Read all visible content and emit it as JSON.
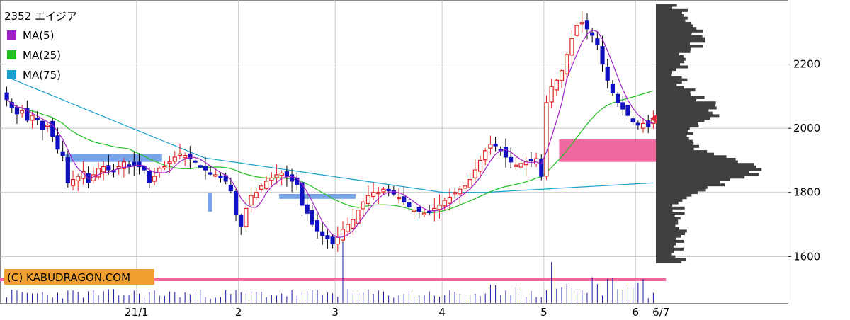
{
  "chart_data": {
    "type": "candlestick",
    "title": "2352 エイジア",
    "legend": [
      {
        "label": "MA(5)",
        "color": "#a020c8"
      },
      {
        "label": "MA(25)",
        "color": "#20c020"
      },
      {
        "label": "MA(75)",
        "color": "#1aa0d0"
      }
    ],
    "watermark": "(C) KABUDRAGON.COM",
    "y_ticks": [
      "2200",
      "2000",
      "1800",
      "1600"
    ],
    "y_tick_values": [
      2200,
      2000,
      1800,
      1600
    ],
    "ylim": [
      1455,
      2400
    ],
    "x_ticks": [
      {
        "label": "21/1",
        "index": 26
      },
      {
        "label": "2",
        "index": 46
      },
      {
        "label": "3",
        "index": 65
      },
      {
        "label": "4",
        "index": 86
      },
      {
        "label": "5",
        "index": 106
      },
      {
        "label": "6",
        "index": 124
      },
      {
        "label": "6/7",
        "index": 129
      }
    ],
    "colors": {
      "up": "#e02020",
      "down": "#1010c0",
      "grid": "#c8c8c8",
      "volume": "#1a1aa0",
      "profile": "#404040",
      "marker": "#e03040",
      "zone": "#f06aa0",
      "resist": "#6a9ae8"
    },
    "closes": [
      2090,
      2065,
      2045,
      2055,
      2025,
      2040,
      2030,
      1995,
      2010,
      1975,
      1935,
      1915,
      1830,
      1840,
      1850,
      1865,
      1830,
      1855,
      1875,
      1880,
      1870,
      1865,
      1880,
      1895,
      1885,
      1885,
      1880,
      1870,
      1830,
      1850,
      1875,
      1880,
      1895,
      1910,
      1920,
      1915,
      1905,
      1895,
      1880,
      1870,
      1860,
      1855,
      1845,
      1835,
      1805,
      1730,
      1695,
      1750,
      1790,
      1800,
      1820,
      1835,
      1845,
      1855,
      1860,
      1850,
      1835,
      1825,
      1760,
      1735,
      1700,
      1680,
      1665,
      1655,
      1640,
      1660,
      1685,
      1700,
      1715,
      1745,
      1770,
      1790,
      1800,
      1800,
      1810,
      1805,
      1795,
      1785,
      1770,
      1755,
      1745,
      1740,
      1735,
      1740,
      1750,
      1760,
      1775,
      1785,
      1800,
      1810,
      1820,
      1840,
      1870,
      1900,
      1930,
      1950,
      1945,
      1930,
      1910,
      1895,
      1885,
      1890,
      1895,
      1900,
      1905,
      1850,
      2080,
      2130,
      2150,
      2180,
      2230,
      2280,
      2320,
      2330,
      2310,
      2290,
      2260,
      2200,
      2150,
      2110,
      2080,
      2060,
      2040,
      2020,
      2010,
      2015,
      2005,
      2030
    ],
    "ohlc_sample_note": "",
    "volume_profile_levels": "1580-2380"
  }
}
